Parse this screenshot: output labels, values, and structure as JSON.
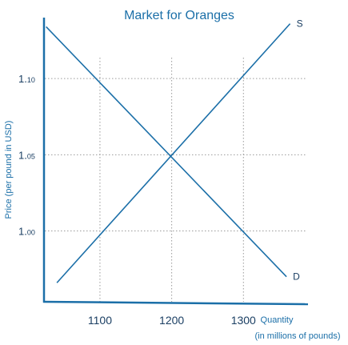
{
  "chart_data": {
    "type": "line",
    "title": "Market for Oranges",
    "ylabel": "Price (per pound in USD)",
    "xlabel": [
      "Quantity",
      "(in millions of pounds)"
    ],
    "xlim": [
      1022,
      1390
    ],
    "ylim": [
      0.953,
      1.14
    ],
    "x_ticks": [
      {
        "value": 1100,
        "label": "1100"
      },
      {
        "value": 1200,
        "label": "1200"
      },
      {
        "value": 1300,
        "label": "1300"
      }
    ],
    "y_ticks": [
      {
        "value": 1.1,
        "big": "1.",
        "small": "10"
      },
      {
        "value": 1.05,
        "big": "1.",
        "small": "05"
      },
      {
        "value": 1.0,
        "big": "1.",
        "small": "00"
      }
    ],
    "grid": "dotted",
    "series": [
      {
        "name": "S",
        "points": [
          [
            1040,
            0.966
          ],
          [
            1365,
            1.136
          ]
        ]
      },
      {
        "name": "D",
        "points": [
          [
            1025,
            1.134
          ],
          [
            1360,
            0.97
          ]
        ]
      }
    ],
    "line_color": "#1b6fa8",
    "axis_color": "#1b6fa8",
    "grid_color": "#9a9a9a"
  }
}
